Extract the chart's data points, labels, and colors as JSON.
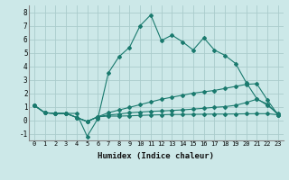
{
  "xlabel": "Humidex (Indice chaleur)",
  "ylabel": "",
  "bg_color": "#cce8e8",
  "line_color": "#1a7a6e",
  "grid_color": "#aacccc",
  "xlim": [
    -0.5,
    23.5
  ],
  "ylim": [
    -1.5,
    8.5
  ],
  "xticks": [
    0,
    1,
    2,
    3,
    4,
    5,
    6,
    7,
    8,
    9,
    10,
    11,
    12,
    13,
    14,
    15,
    16,
    17,
    18,
    19,
    20,
    21,
    22,
    23
  ],
  "yticks": [
    -1,
    0,
    1,
    2,
    3,
    4,
    5,
    6,
    7,
    8
  ],
  "series": [
    [
      1.1,
      0.55,
      0.5,
      0.5,
      0.5,
      -1.2,
      0.1,
      3.5,
      4.7,
      5.4,
      7.0,
      7.8,
      5.9,
      6.3,
      5.8,
      5.2,
      6.1,
      5.2,
      4.8,
      4.2,
      2.8,
      1.6,
      1.1,
      0.5
    ],
    [
      1.1,
      0.55,
      0.5,
      0.5,
      0.2,
      -0.1,
      0.25,
      0.55,
      0.75,
      0.95,
      1.15,
      1.35,
      1.55,
      1.7,
      1.85,
      2.0,
      2.1,
      2.2,
      2.35,
      2.5,
      2.65,
      2.7,
      1.5,
      0.4
    ],
    [
      1.1,
      0.55,
      0.5,
      0.5,
      0.2,
      -0.1,
      0.25,
      0.38,
      0.45,
      0.55,
      0.6,
      0.65,
      0.68,
      0.72,
      0.76,
      0.82,
      0.88,
      0.95,
      1.0,
      1.1,
      1.3,
      1.55,
      1.2,
      0.4
    ],
    [
      1.1,
      0.55,
      0.5,
      0.5,
      0.2,
      -0.1,
      0.25,
      0.3,
      0.3,
      0.32,
      0.35,
      0.38,
      0.4,
      0.42,
      0.42,
      0.43,
      0.44,
      0.45,
      0.45,
      0.46,
      0.47,
      0.48,
      0.48,
      0.4
    ]
  ]
}
